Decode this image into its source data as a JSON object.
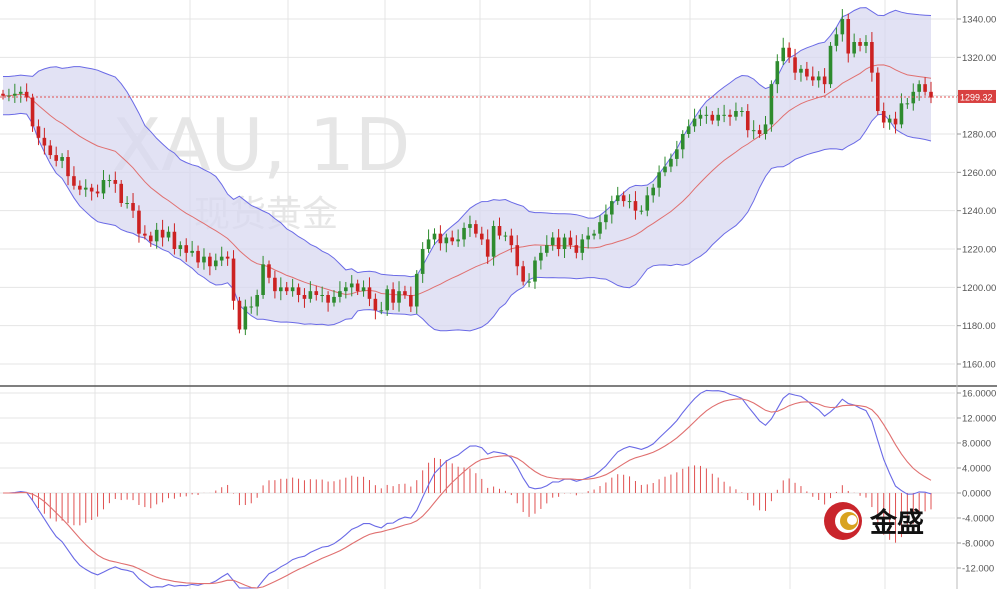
{
  "chart_data": [
    {
      "type": "candlestick",
      "watermark_symbol": "XAU, 1D",
      "watermark_name": "现货黄金",
      "ylim": [
        1150,
        1350
      ],
      "yticks": [
        "1340.00",
        "1320.00",
        "1300.00",
        "1280.00",
        "1260.00",
        "1240.00",
        "1220.00",
        "1200.00",
        "1180.00",
        "1160.00"
      ],
      "ytick_values": [
        1340,
        1320,
        1300,
        1280,
        1260,
        1240,
        1220,
        1200,
        1180,
        1160
      ],
      "last_price_label": "1299.32",
      "last_price": 1299.32,
      "grid": true,
      "colors": {
        "up": "#2e8b2e",
        "down": "#cc2222",
        "band_fill": "#d8d8f0",
        "band_line": "#6a6ae6",
        "ma_line": "#e07070",
        "price_line": "#e05050"
      },
      "closes": [
        1300,
        1300,
        1301,
        1302,
        1299,
        1284,
        1278,
        1274,
        1269,
        1266,
        1268,
        1258,
        1253,
        1251,
        1252,
        1250,
        1249,
        1256,
        1256,
        1254,
        1244,
        1244,
        1240,
        1228,
        1227,
        1224,
        1230,
        1226,
        1229,
        1220,
        1222,
        1218,
        1219,
        1213,
        1216,
        1211,
        1214,
        1216,
        1215,
        1193,
        1178,
        1190,
        1190,
        1196,
        1212,
        1205,
        1198,
        1200,
        1198,
        1200,
        1196,
        1194,
        1198,
        1196,
        1196,
        1192,
        1195,
        1198,
        1200,
        1202,
        1198,
        1200,
        1194,
        1188,
        1188,
        1199,
        1192,
        1198,
        1196,
        1190,
        1207,
        1220,
        1225,
        1228,
        1223,
        1226,
        1224,
        1225,
        1231,
        1233,
        1228,
        1225,
        1216,
        1232,
        1227,
        1227,
        1222,
        1211,
        1203,
        1203,
        1214,
        1218,
        1222,
        1226,
        1220,
        1226,
        1222,
        1218,
        1225,
        1227,
        1228,
        1234,
        1238,
        1245,
        1248,
        1245,
        1245,
        1240,
        1240,
        1248,
        1252,
        1260,
        1263,
        1267,
        1272,
        1280,
        1284,
        1288,
        1290,
        1290,
        1287,
        1290,
        1290,
        1289,
        1292,
        1292,
        1282,
        1282,
        1280,
        1285,
        1306,
        1318,
        1325,
        1320,
        1312,
        1314,
        1310,
        1308,
        1310,
        1306,
        1326,
        1332,
        1340,
        1322,
        1328,
        1326,
        1328,
        1312,
        1292,
        1286,
        1288,
        1285,
        1296,
        1296,
        1302,
        1306,
        1302,
        1299
      ],
      "macd_ylim": [
        -14,
        17
      ],
      "macd_yticks": [
        "16.0000",
        "12.0000",
        "8.0000",
        "4.0000",
        "0.0000",
        "-4.0000",
        "-8.0000",
        "-12.000"
      ],
      "macd_ytick_values": [
        16,
        12,
        8,
        4,
        0,
        -4,
        -8,
        -12
      ]
    }
  ],
  "logo": {
    "text": "金盛"
  }
}
